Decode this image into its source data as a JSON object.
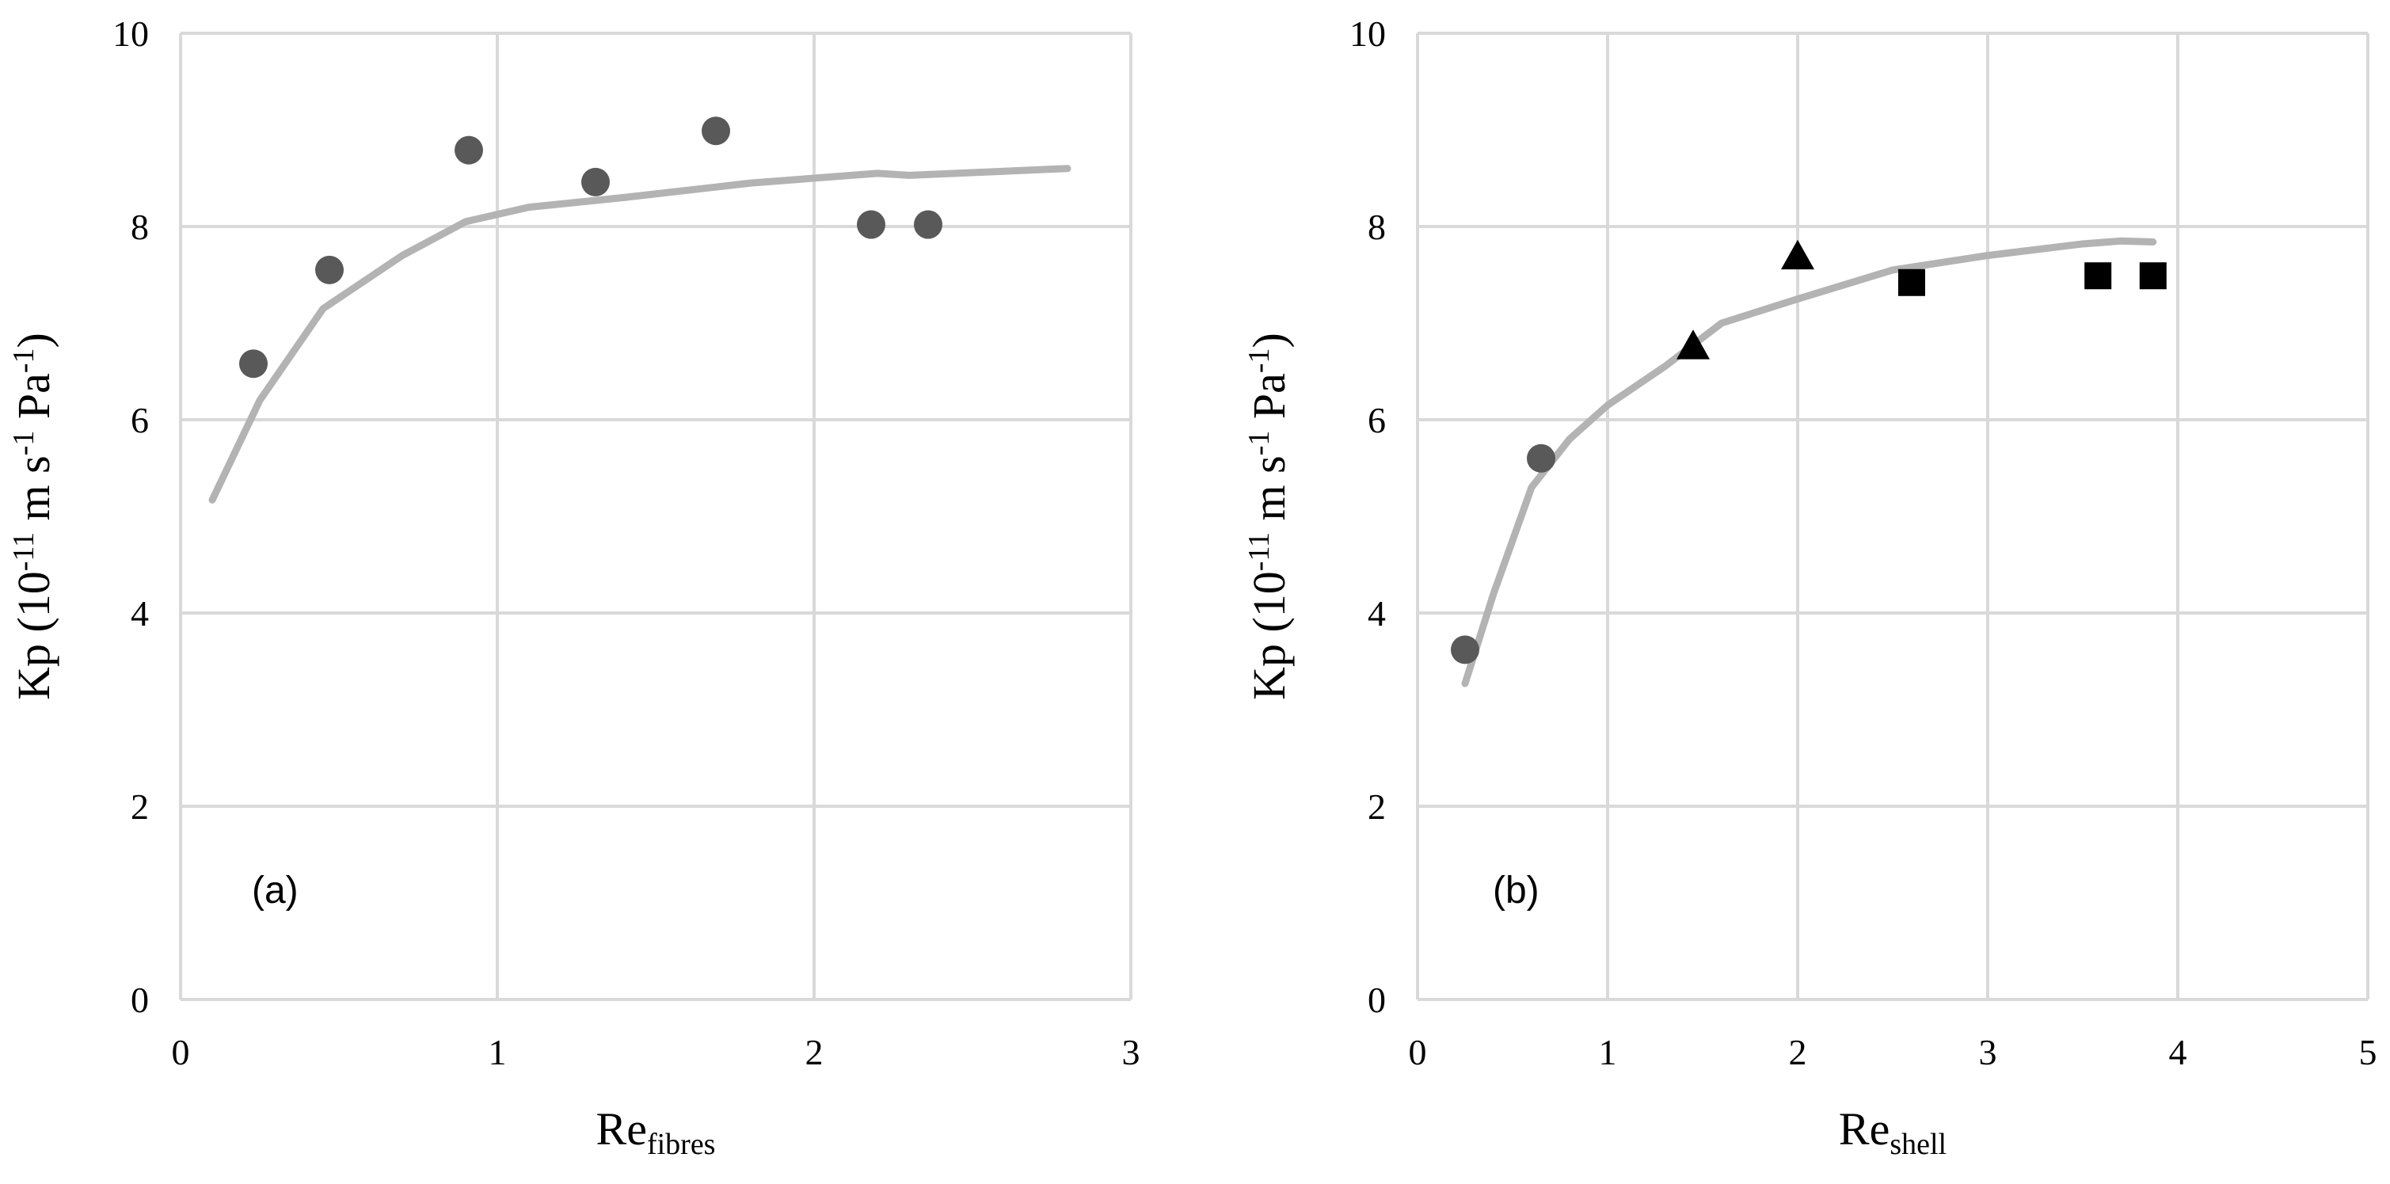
{
  "chart_data": [
    {
      "type": "scatter",
      "panel_label": "(a)",
      "xlabel_main": "Re",
      "xlabel_sub": "fibres",
      "ylabel": "Kp (10",
      "ylabel_exp1": "-11",
      "ylabel_mid": " m s",
      "ylabel_exp2": "-1",
      "ylabel_mid2": " Pa",
      "ylabel_exp3": "-1",
      "ylabel_end": ")",
      "xlim": [
        0,
        3
      ],
      "ylim": [
        0,
        10
      ],
      "xticks": [
        "0",
        "1",
        "2",
        "3"
      ],
      "yticks": [
        "0",
        "2",
        "4",
        "6",
        "8",
        "10"
      ],
      "grid": true,
      "series": [
        {
          "marker": "circle",
          "color": "#595959",
          "points": [
            [
              0.23,
              6.58
            ],
            [
              0.47,
              7.55
            ],
            [
              0.91,
              8.79
            ],
            [
              1.31,
              8.46
            ],
            [
              1.69,
              8.99
            ],
            [
              2.18,
              8.02
            ],
            [
              2.36,
              8.02
            ]
          ]
        }
      ],
      "fit_line": {
        "color": "#b3b3b3",
        "points": [
          [
            0.1,
            5.17
          ],
          [
            0.25,
            6.2
          ],
          [
            0.45,
            7.15
          ],
          [
            0.7,
            7.7
          ],
          [
            0.9,
            8.05
          ],
          [
            1.1,
            8.2
          ],
          [
            1.4,
            8.3
          ],
          [
            1.8,
            8.45
          ],
          [
            2.2,
            8.55
          ],
          [
            2.3,
            8.53
          ],
          [
            2.8,
            8.6
          ]
        ]
      }
    },
    {
      "type": "scatter",
      "panel_label": "(b)",
      "xlabel_main": "Re",
      "xlabel_sub": "shell",
      "ylabel": "Kp (10",
      "ylabel_exp1": "-11",
      "ylabel_mid": " m s",
      "ylabel_exp2": "-1",
      "ylabel_mid2": " Pa",
      "ylabel_exp3": "-1",
      "ylabel_end": ")",
      "xlim": [
        0,
        5
      ],
      "ylim": [
        0,
        10
      ],
      "xticks": [
        "0",
        "1",
        "2",
        "3",
        "4",
        "5"
      ],
      "yticks": [
        "0",
        "2",
        "4",
        "6",
        "8",
        "10"
      ],
      "grid": true,
      "series": [
        {
          "marker": "circle",
          "color": "#595959",
          "points": [
            [
              0.25,
              3.62
            ],
            [
              0.65,
              5.6
            ]
          ]
        },
        {
          "marker": "triangle",
          "color": "#000000",
          "points": [
            [
              1.45,
              6.75
            ],
            [
              2.0,
              7.68
            ]
          ]
        },
        {
          "marker": "square",
          "color": "#000000",
          "points": [
            [
              2.6,
              7.42
            ],
            [
              3.58,
              7.49
            ],
            [
              3.87,
              7.49
            ]
          ]
        }
      ],
      "fit_line": {
        "color": "#b3b3b3",
        "points": [
          [
            0.25,
            3.27
          ],
          [
            0.4,
            4.2
          ],
          [
            0.6,
            5.3
          ],
          [
            0.8,
            5.8
          ],
          [
            1.0,
            6.15
          ],
          [
            1.3,
            6.55
          ],
          [
            1.6,
            7.0
          ],
          [
            2.0,
            7.25
          ],
          [
            2.5,
            7.55
          ],
          [
            3.0,
            7.7
          ],
          [
            3.5,
            7.82
          ],
          [
            3.7,
            7.85
          ],
          [
            3.87,
            7.84
          ]
        ]
      }
    }
  ]
}
